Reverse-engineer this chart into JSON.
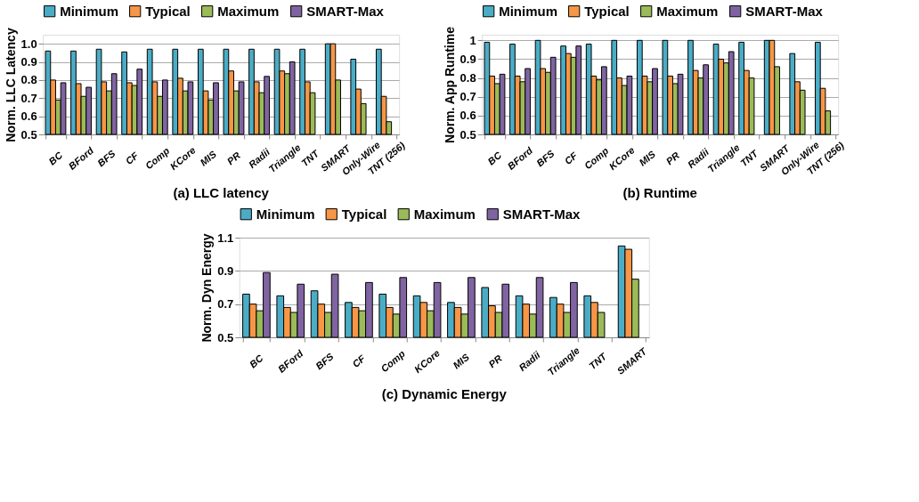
{
  "chart_data": [
    {
      "type": "bar",
      "title": "(a) LLC latency",
      "ylabel": "Norm. LLC Latency",
      "categories": [
        "BC",
        "BFord",
        "BFS",
        "CF",
        "Comp",
        "KCore",
        "MIS",
        "PR",
        "Radii",
        "Triangle",
        "TNT",
        "SMART",
        "Only-Wire",
        "TNT (256)"
      ],
      "ylim": [
        0.5,
        1.05
      ],
      "yticks": [
        {
          "value": 0.5,
          "label": "0.5"
        },
        {
          "value": 0.6,
          "label": "0.6"
        },
        {
          "value": 0.7,
          "label": "0.7"
        },
        {
          "value": 0.8,
          "label": "0.8"
        },
        {
          "value": 0.9,
          "label": "0.9"
        },
        {
          "value": 1.0,
          "label": "1.0"
        }
      ],
      "grid": "y",
      "legend": "top",
      "series": [
        {
          "name": "Minimum",
          "color": "#4bacc6",
          "values": [
            0.96,
            0.96,
            0.97,
            0.955,
            0.97,
            0.97,
            0.97,
            0.97,
            0.97,
            0.97,
            0.97,
            1.0,
            0.915,
            0.97
          ]
        },
        {
          "name": "Typical",
          "color": "#f79646",
          "values": [
            0.8,
            0.78,
            0.79,
            0.785,
            0.79,
            0.81,
            0.74,
            0.85,
            0.79,
            0.85,
            0.79,
            1.0,
            0.75,
            0.71
          ]
        },
        {
          "name": "Maximum",
          "color": "#9bbb59",
          "values": [
            0.69,
            0.71,
            0.74,
            0.77,
            0.71,
            0.74,
            0.69,
            0.74,
            0.73,
            0.835,
            0.73,
            0.8,
            0.67,
            0.57
          ]
        },
        {
          "name": "SMART-Max",
          "color": "#8064a2",
          "values": [
            0.785,
            0.76,
            0.835,
            0.86,
            0.8,
            0.79,
            0.785,
            0.79,
            0.82,
            0.9,
            null,
            null,
            null,
            null
          ]
        }
      ]
    },
    {
      "type": "bar",
      "title": "(b) Runtime",
      "ylabel": "Norm. App Runtime",
      "categories": [
        "BC",
        "BFord",
        "BFS",
        "CF",
        "Comp",
        "KCore",
        "MIS",
        "PR",
        "Radii",
        "Triangle",
        "TNT",
        "SMART",
        "Only-Wire",
        "TNT (256)"
      ],
      "ylim": [
        0.5,
        1.03
      ],
      "yticks": [
        0.5,
        0.6,
        0.7,
        0.8,
        0.9,
        {
          "value": 1,
          "label": "1"
        }
      ],
      "grid": "y",
      "legend": "top",
      "series": [
        {
          "name": "Minimum",
          "color": "#4bacc6",
          "values": [
            0.99,
            0.98,
            1.0,
            0.97,
            0.98,
            1.0,
            1.0,
            1.0,
            1.0,
            0.98,
            0.99,
            1.0,
            0.93,
            0.99
          ]
        },
        {
          "name": "Typical",
          "color": "#f79646",
          "values": [
            0.81,
            0.81,
            0.85,
            0.93,
            0.81,
            0.8,
            0.81,
            0.81,
            0.84,
            0.9,
            0.84,
            1.0,
            0.78,
            0.745
          ]
        },
        {
          "name": "Maximum",
          "color": "#9bbb59",
          "values": [
            0.77,
            0.78,
            0.83,
            0.91,
            0.79,
            0.76,
            0.78,
            0.77,
            0.8,
            0.88,
            0.8,
            0.86,
            0.735,
            0.625
          ]
        },
        {
          "name": "SMART-Max",
          "color": "#8064a2",
          "values": [
            0.82,
            0.85,
            0.91,
            0.97,
            0.86,
            0.81,
            0.85,
            0.82,
            0.87,
            0.94,
            null,
            null,
            null,
            null
          ]
        }
      ]
    },
    {
      "type": "bar",
      "title": "(c) Dynamic Energy",
      "ylabel": "Norm. Dyn Energy",
      "categories": [
        "BC",
        "BFord",
        "BFS",
        "CF",
        "Comp",
        "KCore",
        "MIS",
        "PR",
        "Radii",
        "Triangle",
        "TNT",
        "SMART"
      ],
      "ylim": [
        0.5,
        1.1
      ],
      "yticks": [
        0.5,
        0.7,
        0.9,
        1.1
      ],
      "grid": "y",
      "legend": "top",
      "series": [
        {
          "name": "Minimum",
          "color": "#4bacc6",
          "values": [
            0.76,
            0.75,
            0.78,
            0.71,
            0.76,
            0.75,
            0.71,
            0.8,
            0.75,
            0.74,
            0.75,
            1.05
          ]
        },
        {
          "name": "Typical",
          "color": "#f79646",
          "values": [
            0.7,
            0.68,
            0.7,
            0.68,
            0.68,
            0.71,
            0.68,
            0.69,
            0.7,
            0.7,
            0.71,
            1.03
          ]
        },
        {
          "name": "Maximum",
          "color": "#9bbb59",
          "values": [
            0.66,
            0.65,
            0.65,
            0.66,
            0.64,
            0.66,
            0.64,
            0.65,
            0.64,
            0.65,
            0.65,
            0.85
          ]
        },
        {
          "name": "SMART-Max",
          "color": "#8064a2",
          "values": [
            0.89,
            0.82,
            0.88,
            0.83,
            0.86,
            0.83,
            0.86,
            0.82,
            0.86,
            0.83,
            null,
            null
          ]
        }
      ]
    }
  ]
}
